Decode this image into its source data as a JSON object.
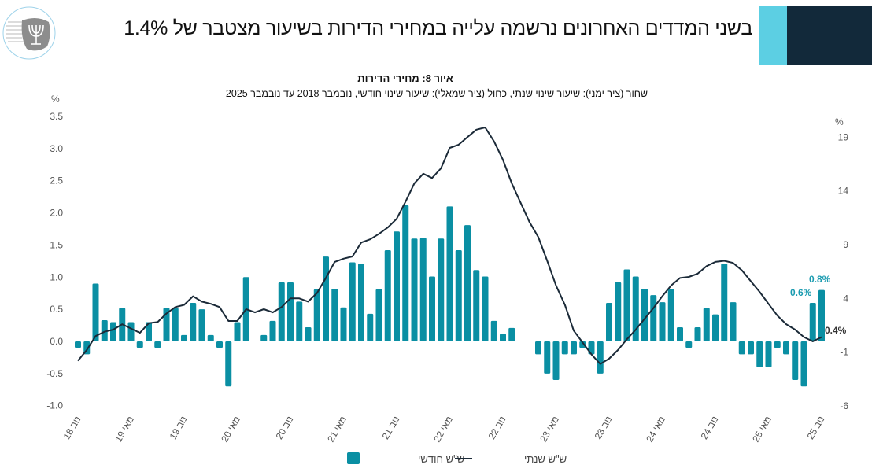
{
  "header": {
    "title": "בשני המדדים האחרונים נרשמה עלייה במחירי הדירות בשיעור מצטבר של 1.4%",
    "accent_colors": {
      "cyan": "#5ccfe3",
      "navy": "#12293a"
    },
    "logo": {
      "name": "bank-of-israel-logo",
      "text": "בנק ישראל BANK OF ISRAEL بنك إسرائيل"
    }
  },
  "chart_data": {
    "type": "bar+line",
    "title": "איור 8: מחירי הדירות",
    "subtitle": "שחור (ציר ימני): שיעור שינוי שנתי, כחול (ציר שמאלי): שיעור שינוי חודשי, נובמבר 2018 עד נובמבר 2025",
    "left_axis": {
      "unit": "%",
      "ylim": [
        -1.0,
        3.5
      ],
      "ticks": [
        "3.5",
        "3.0",
        "2.5",
        "2.0",
        "1.5",
        "1.0",
        "0.5",
        "0.0",
        "-0.5",
        "-1.0"
      ]
    },
    "right_axis": {
      "unit": "%",
      "ylim": [
        -6,
        19
      ],
      "ticks": [
        "19",
        "14",
        "9",
        "4",
        "-1",
        "-6"
      ]
    },
    "x_tick_labels": [
      "נוב 18",
      "מאי 19",
      "נוב 19",
      "מאי 20",
      "נוב 20",
      "מאי 21",
      "נוב 21",
      "מאי 22",
      "נוב 22",
      "מאי 23",
      "נוב 23",
      "מאי 24",
      "נוב 24",
      "מאי 25",
      "נוב 25"
    ],
    "period": "11/2018 - 11/2025 monthly",
    "series": [
      {
        "name": "ש\"ש חודשי",
        "type": "bar",
        "axis": "left",
        "color": "#0a8fa3",
        "values": [
          -0.1,
          -0.2,
          0.9,
          0.33,
          0.3,
          0.52,
          0.3,
          -0.1,
          0.3,
          -0.1,
          0.52,
          0.52,
          0.1,
          0.6,
          0.5,
          0.1,
          -0.1,
          -0.7,
          0.3,
          1.0,
          0.0,
          0.1,
          0.32,
          0.92,
          0.92,
          0.62,
          0.22,
          0.81,
          1.32,
          0.82,
          0.53,
          1.23,
          1.21,
          0.43,
          0.81,
          1.42,
          1.71,
          2.12,
          1.6,
          1.61,
          1.01,
          1.6,
          2.1,
          1.42,
          1.81,
          1.11,
          1.01,
          0.32,
          0.12,
          0.21,
          0.0,
          0.0,
          -0.2,
          -0.5,
          -0.6,
          -0.2,
          -0.2,
          -0.1,
          -0.2,
          -0.5,
          0.6,
          0.92,
          1.12,
          1.01,
          0.82,
          0.72,
          0.61,
          0.81,
          0.22,
          -0.1,
          0.22,
          0.52,
          0.42,
          1.21,
          0.61,
          -0.2,
          -0.2,
          -0.4,
          -0.4,
          -0.1,
          -0.2,
          -0.6,
          -0.7,
          0.6,
          0.8
        ]
      },
      {
        "name": "ש\"ש שנתי",
        "type": "line",
        "axis": "right",
        "color": "#1b2a38",
        "values": [
          -1.8,
          -0.8,
          0.5,
          0.9,
          1.1,
          1.6,
          1.2,
          0.8,
          1.7,
          1.8,
          2.6,
          3.2,
          3.4,
          4.2,
          3.7,
          3.5,
          3.2,
          1.9,
          1.9,
          3.0,
          2.7,
          3.0,
          2.7,
          3.2,
          4.0,
          4.0,
          3.7,
          4.5,
          5.9,
          7.4,
          7.7,
          7.9,
          9.2,
          9.5,
          10.0,
          10.6,
          11.4,
          13.0,
          14.7,
          15.6,
          15.2,
          16.1,
          18.0,
          18.3,
          19.0,
          19.7,
          19.9,
          18.6,
          16.9,
          14.7,
          12.9,
          11.1,
          9.7,
          7.5,
          5.2,
          3.4,
          1.0,
          -0.1,
          -1.2,
          -2.1,
          -1.6,
          -0.8,
          0.2,
          1.1,
          2.1,
          3.1,
          4.2,
          5.2,
          5.9,
          6.0,
          6.3,
          7.0,
          7.4,
          7.5,
          7.3,
          6.6,
          5.6,
          4.6,
          3.5,
          2.4,
          1.6,
          1.1,
          0.4,
          0.0,
          0.4
        ]
      }
    ],
    "annotations": [
      {
        "text": "0.6%",
        "series": "ש\"ש חודשי",
        "color": "#1a9bb0"
      },
      {
        "text": "0.8%",
        "series": "ש\"ש חודשי",
        "color": "#1a9bb0"
      },
      {
        "text": "0.4%",
        "series": "ש\"ש שנתי",
        "color": "#333333"
      }
    ],
    "legend": {
      "position": "bottom",
      "items": [
        "ש\"ש חודשי",
        "ש\"ש שנתי"
      ]
    },
    "grid": false
  }
}
